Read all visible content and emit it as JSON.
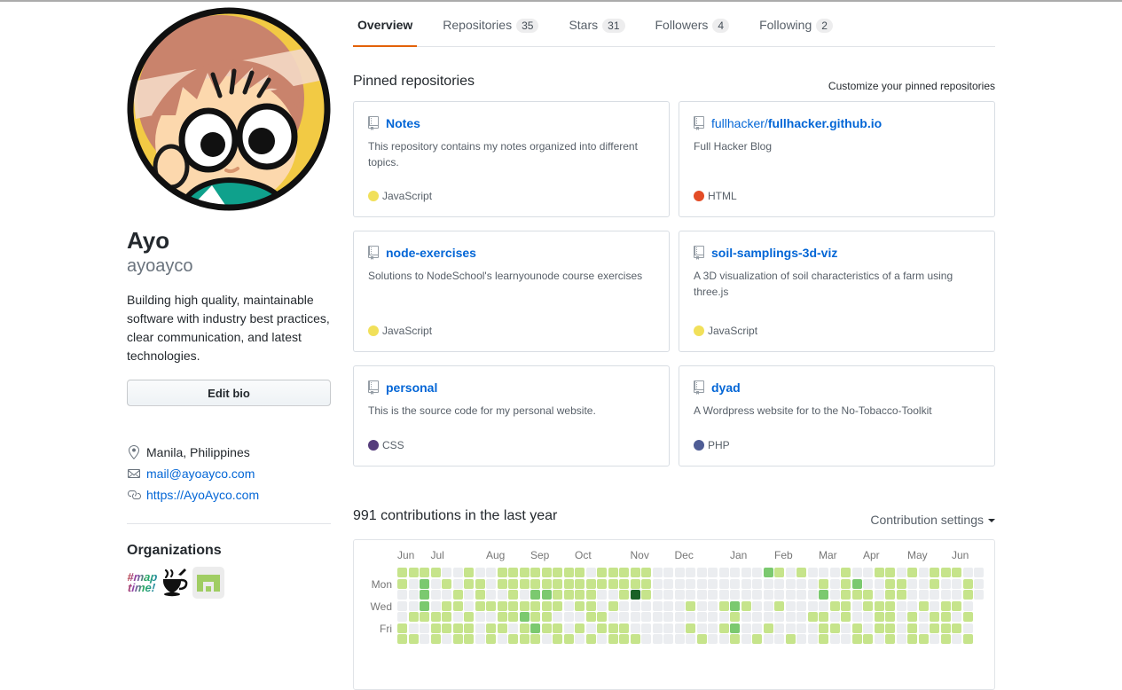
{
  "header": {
    "tabs": [
      {
        "label": "Overview",
        "active": true
      },
      {
        "label": "Repositories",
        "count": "35"
      },
      {
        "label": "Stars",
        "count": "31"
      },
      {
        "label": "Followers",
        "count": "4"
      },
      {
        "label": "Following",
        "count": "2"
      }
    ]
  },
  "profile": {
    "name": "Ayo",
    "username": "ayoayco",
    "bio": "Building high quality, maintainable software with industry best practices, clear communication, and latest technologies.",
    "edit_bio_label": "Edit bio",
    "location": "Manila, Philippines",
    "email": "mail@ayoayco.com",
    "website": "https://AyoAyco.com",
    "organizations_title": "Organizations"
  },
  "pinned": {
    "title": "Pinned repositories",
    "customize_label": "Customize your pinned repositories",
    "repos": [
      {
        "prefix": "",
        "name": "Notes",
        "description": "This repository contains my notes organized into different topics.",
        "language": "JavaScript",
        "language_color": "#f1e05a"
      },
      {
        "prefix": "fullhacker/",
        "name": "fullhacker.github.io",
        "description": "Full Hacker Blog",
        "language": "HTML",
        "language_color": "#e34c26"
      },
      {
        "prefix": "",
        "name": "node-exercises",
        "description": "Solutions to NodeSchool's learnyounode course exercises",
        "language": "JavaScript",
        "language_color": "#f1e05a"
      },
      {
        "prefix": "",
        "name": "soil-samplings-3d-viz",
        "description": "A 3D visualization of soil characteristics of a farm using three.js",
        "language": "JavaScript",
        "language_color": "#f1e05a"
      },
      {
        "prefix": "",
        "name": "personal",
        "description": "This is the source code for my personal website.",
        "language": "CSS",
        "language_color": "#563d7c"
      },
      {
        "prefix": "",
        "name": "dyad",
        "description": "A Wordpress website for to the No-Tobacco-Toolkit",
        "language": "PHP",
        "language_color": "#4F5D95"
      }
    ]
  },
  "contributions": {
    "heading": "991 contributions in the last year",
    "settings_label": "Contribution settings",
    "months": [
      {
        "label": "Jun",
        "week": 0
      },
      {
        "label": "Jul",
        "week": 3
      },
      {
        "label": "Aug",
        "week": 8
      },
      {
        "label": "Sep",
        "week": 12
      },
      {
        "label": "Oct",
        "week": 16
      },
      {
        "label": "Nov",
        "week": 21
      },
      {
        "label": "Dec",
        "week": 25
      },
      {
        "label": "Jan",
        "week": 30
      },
      {
        "label": "Feb",
        "week": 34
      },
      {
        "label": "Mar",
        "week": 38
      },
      {
        "label": "Apr",
        "week": 42
      },
      {
        "label": "May",
        "week": 46
      },
      {
        "label": "Jun",
        "week": 50
      }
    ],
    "day_labels": [
      {
        "label": "Mon",
        "row": 1
      },
      {
        "label": "Wed",
        "row": 3
      },
      {
        "label": "Fri",
        "row": 5
      }
    ],
    "levels": [
      "#ebedf0",
      "#c6e48b",
      "#7bc96f",
      "#239a3b",
      "#196127"
    ],
    "grid": [
      "11110010011111111011111000000000021010001001101011 1001",
      "1020101101111111111111100000000000000010120011001001 00-",
      "0020010100102211110014100000000000000020111011000001 00-",
      "0020110111111110110100000010012100100001101110010110 -",
      "0111101001121100011000000000001000000110100110101101 -",
      "1001111011012110101110000010012001000011010110101110 -",
      "1101011010111011010111000001001010010010011010110101 -"
    ],
    "grid_note": "rows are Sun..Sat, 53 weeks, digits = contribution level 0-4, '-' = no cell"
  }
}
